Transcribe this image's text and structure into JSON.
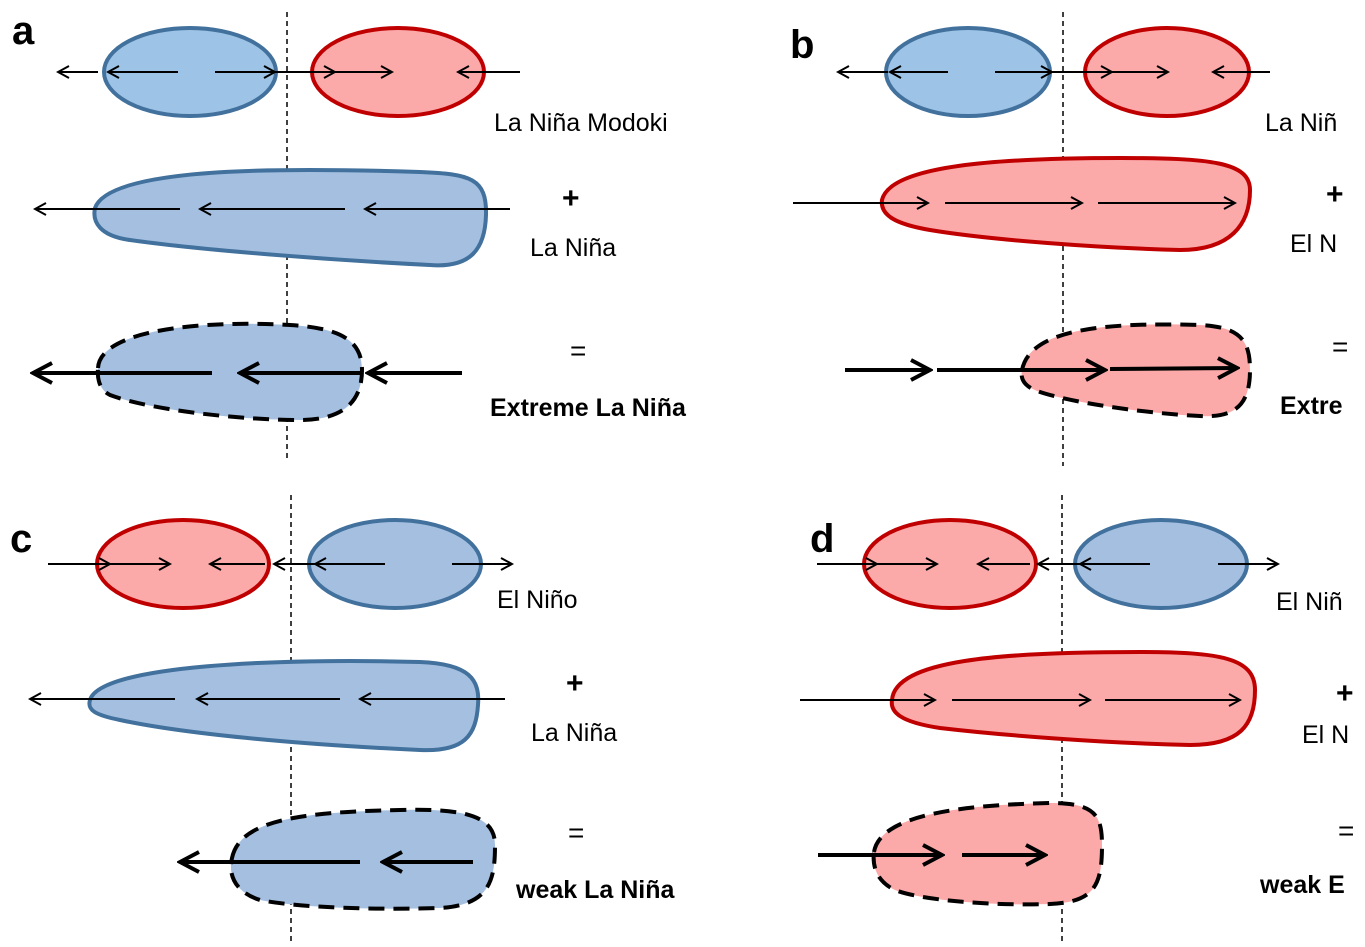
{
  "panels": {
    "a": {
      "letter": "a",
      "row1_label": "La Niña Modoki",
      "plus": "+",
      "row2_label": "La Niña",
      "equals": "=",
      "result_label": "Extreme La Niña"
    },
    "b": {
      "letter": "b",
      "row1_label": "La Niñ",
      "plus": "+",
      "row2_label": "El N",
      "equals": "=",
      "result_label": "Extre"
    },
    "c": {
      "letter": "c",
      "row1_label": "El Niño",
      "plus": "+",
      "row2_label": "La Niña",
      "equals": "=",
      "result_label": "weak La Niña"
    },
    "d": {
      "letter": "d",
      "row1_label": "El Niñ",
      "plus": "+",
      "row2_label": "El N",
      "equals": "=",
      "result_label": "weak E"
    }
  },
  "colors": {
    "cold_fill": "#a4bfe0",
    "cold_outline": "#41719c",
    "warm_fill": "#fba9a9",
    "warm_outline": "#c00000"
  }
}
